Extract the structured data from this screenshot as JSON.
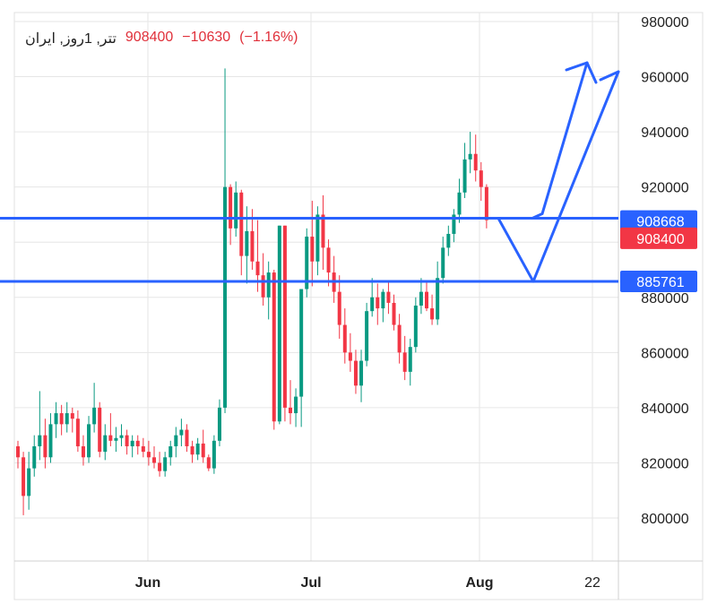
{
  "header": {
    "symbol_label": "تتر, 1روز, ایران",
    "last_price": "908400",
    "change": "−10630",
    "change_pct": "(−1.16%)"
  },
  "colors": {
    "up": "#089981",
    "down": "#f23645",
    "line": "#2962ff",
    "grid": "#e6e6e6",
    "axis_text": "#222222"
  },
  "chart_data": {
    "type": "candlestick",
    "y_axis_ticks": [
      "800000",
      "820000",
      "840000",
      "860000",
      "880000",
      "900000",
      "920000",
      "940000",
      "960000",
      "980000"
    ],
    "x_axis_ticks": [
      "Jun",
      "Jul",
      "Aug",
      "22"
    ],
    "ylim": [
      780000,
      983000
    ],
    "price_lines": [
      {
        "label": "908668",
        "value": 908668
      },
      {
        "label": "885761",
        "value": 885761
      }
    ],
    "last_price_tag": {
      "label": "908400",
      "value": 908400
    },
    "drawings": [
      {
        "name": "projection-arrow-main",
        "points": [
          [
            "Aug+22d",
            908668
          ],
          [
            "Aug+29d",
            963000
          ]
        ]
      },
      {
        "name": "projection-arrow-alt",
        "points": [
          [
            "Aug+9d",
            908668
          ],
          [
            "Aug+19d",
            885761
          ],
          [
            "Aug+37d",
            962000
          ]
        ]
      }
    ],
    "candles": [
      [
        826,
        828,
        818,
        822
      ],
      [
        822,
        824,
        801,
        808
      ],
      [
        808,
        824,
        803,
        818
      ],
      [
        818,
        830,
        815,
        826
      ],
      [
        826,
        846,
        821,
        830
      ],
      [
        830,
        836,
        818,
        822
      ],
      [
        822,
        838,
        820,
        834
      ],
      [
        834,
        842,
        829,
        838
      ],
      [
        838,
        841,
        830,
        834
      ],
      [
        834,
        842,
        831,
        838
      ],
      [
        838,
        840,
        831,
        836
      ],
      [
        836,
        839,
        824,
        826
      ],
      [
        826,
        830,
        819,
        822
      ],
      [
        822,
        837,
        820,
        834
      ],
      [
        834,
        849,
        831,
        840
      ],
      [
        840,
        842,
        822,
        824
      ],
      [
        824,
        834,
        821,
        830
      ],
      [
        830,
        838,
        826,
        828
      ],
      [
        828,
        833,
        824,
        829
      ],
      [
        829,
        834,
        826,
        830
      ],
      [
        830,
        832,
        823,
        826
      ],
      [
        826,
        830,
        822,
        828
      ],
      [
        828,
        830,
        823,
        826
      ],
      [
        826,
        829,
        822,
        824
      ],
      [
        824,
        828,
        819,
        822
      ],
      [
        822,
        826,
        818,
        820
      ],
      [
        820,
        824,
        815,
        817
      ],
      [
        817,
        824,
        815,
        822
      ],
      [
        822,
        828,
        819,
        826
      ],
      [
        826,
        833,
        822,
        830
      ],
      [
        830,
        836,
        826,
        832
      ],
      [
        832,
        834,
        824,
        826
      ],
      [
        826,
        828,
        820,
        823
      ],
      [
        823,
        829,
        821,
        827
      ],
      [
        827,
        832,
        820,
        822
      ],
      [
        822,
        823,
        817,
        818
      ],
      [
        818,
        830,
        816,
        828
      ],
      [
        828,
        843,
        826,
        840
      ],
      [
        840,
        963,
        838,
        920
      ],
      [
        920,
        921,
        899,
        905
      ],
      [
        905,
        922,
        902,
        918
      ],
      [
        918,
        919,
        888,
        895
      ],
      [
        895,
        913,
        885,
        904
      ],
      [
        904,
        912,
        890,
        893
      ],
      [
        893,
        908,
        882,
        888
      ],
      [
        888,
        896,
        877,
        880
      ],
      [
        880,
        893,
        872,
        889
      ],
      [
        889,
        890,
        832,
        835
      ],
      [
        835,
        906,
        834,
        906
      ],
      [
        906,
        906,
        835,
        840
      ],
      [
        840,
        850,
        834,
        838
      ],
      [
        838,
        847,
        833,
        844
      ],
      [
        844,
        881,
        833,
        883
      ],
      [
        883,
        905,
        880,
        902
      ],
      [
        902,
        915,
        884,
        893
      ],
      [
        893,
        913,
        888,
        910
      ],
      [
        910,
        917,
        890,
        898
      ],
      [
        898,
        901,
        884,
        889
      ],
      [
        889,
        895,
        878,
        882
      ],
      [
        882,
        888,
        865,
        870
      ],
      [
        870,
        876,
        856,
        860
      ],
      [
        860,
        867,
        853,
        857
      ],
      [
        857,
        861,
        845,
        848
      ],
      [
        848,
        861,
        842,
        857
      ],
      [
        857,
        878,
        855,
        875
      ],
      [
        875,
        887,
        873,
        880
      ],
      [
        880,
        885,
        870,
        876
      ],
      [
        876,
        883,
        871,
        882
      ],
      [
        882,
        886,
        874,
        878
      ],
      [
        878,
        881,
        868,
        870
      ],
      [
        870,
        874,
        856,
        860
      ],
      [
        860,
        866,
        850,
        853
      ],
      [
        853,
        865,
        848,
        862
      ],
      [
        862,
        880,
        860,
        877
      ],
      [
        877,
        887,
        874,
        882
      ],
      [
        882,
        886,
        875,
        876
      ],
      [
        876,
        881,
        870,
        872
      ],
      [
        872,
        893,
        870,
        887
      ],
      [
        887,
        902,
        885,
        898
      ],
      [
        898,
        906,
        895,
        903
      ],
      [
        903,
        912,
        900,
        910
      ],
      [
        910,
        923,
        907,
        918
      ],
      [
        918,
        936,
        916,
        930
      ],
      [
        930,
        940,
        925,
        932
      ],
      [
        932,
        939,
        922,
        926
      ],
      [
        926,
        929,
        915,
        920
      ],
      [
        920,
        921,
        905,
        908
      ]
    ]
  }
}
